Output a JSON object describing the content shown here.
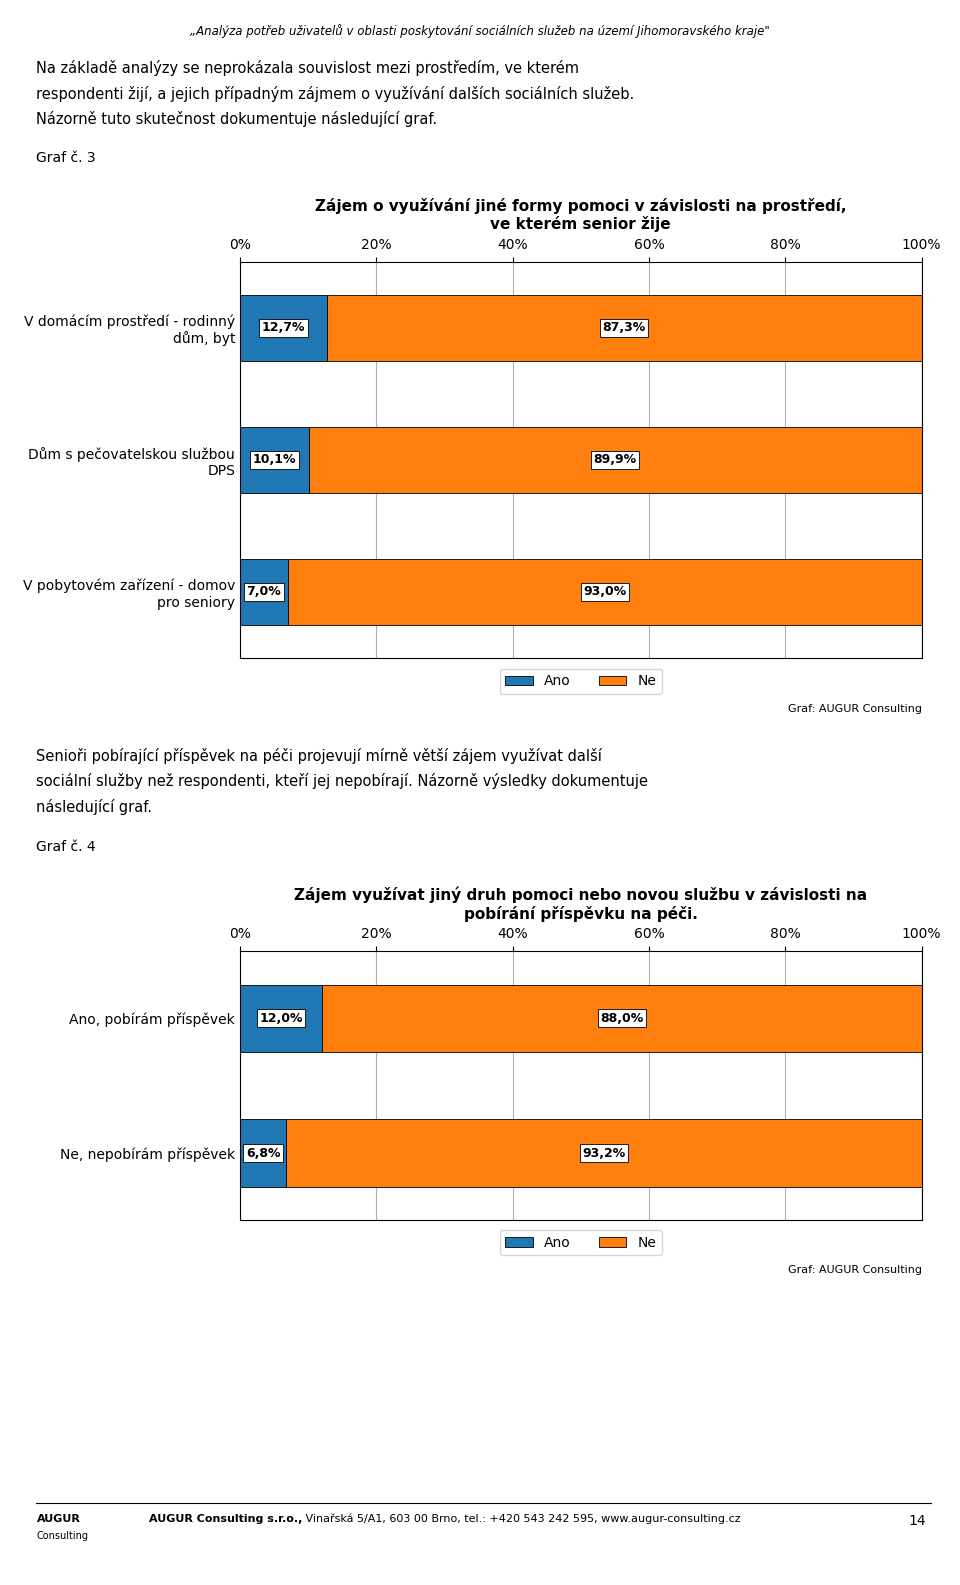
{
  "title": "„Analýza potřeb uživatelů v oblasti poskytování sociálních služeb na území Jihomoravského kraje\"",
  "annotations": [
    "AUGUR",
    "Consulting",
    "AUGUR Consulting s.r.o.,",
    " Vinařská 5/A1, 603 00 Brno, tel.: +420 543 242 595, www.augur-consulting.cz",
    "14"
  ],
  "chart_data": [
    {
      "type": "bar",
      "orientation": "horizontal",
      "stacked": true,
      "data_labels": true,
      "grid": true,
      "legend": "upper center",
      "subtitle": "Graf č. 3",
      "title": "Zájem o využívání jiné formy pomoci v závislosti na prostředí,\nve kterém senior žije",
      "annotations": [
        "Na základě analýzy se neprokázala souvislost mezi prostředím, ve kterém",
        "respondenti žijí, a jejich případným zájmem o využívání dalších sociálních služeb.",
        "Názorně tuto skutečnost dokumentuje následující graf.",
        "Graf: AUGUR Consulting"
      ],
      "categories": [
        "V domácím prostředí - rodinný\ndům, byt",
        "Dům s pečovatelskou službou\nDPS",
        "V pobytovém zařízení - domov\npro seniory"
      ],
      "series": [
        {
          "name": "Ano",
          "values": [
            12.7,
            10.1,
            7.0
          ],
          "value_labels": [
            "12,7%",
            "10,1%",
            "7,0%"
          ]
        },
        {
          "name": "Ne",
          "values": [
            87.3,
            89.9,
            93.0
          ],
          "value_labels": [
            "87,3%",
            "89,9%",
            "93,0%"
          ]
        }
      ],
      "xlim": [
        0,
        100
      ],
      "xticks": [
        {
          "value": 0,
          "label": "0%"
        },
        {
          "value": 20,
          "label": "20%"
        },
        {
          "value": 40,
          "label": "40%"
        },
        {
          "value": 60,
          "label": "60%"
        },
        {
          "value": 80,
          "label": "80%"
        },
        {
          "value": 100,
          "label": "100%"
        }
      ]
    },
    {
      "type": "bar",
      "orientation": "horizontal",
      "stacked": true,
      "data_labels": true,
      "grid": true,
      "legend": "upper center",
      "subtitle": "Graf č. 4",
      "title": "Zájem využívat jiný druh pomoci nebo novou službu v závislosti na\npobírání příspěvku na péči.",
      "annotations": [
        "Senioři pobírající příspěvek na péči projevují mírně větší zájem využívat další",
        "sociální služby než respondenti, kteří jej nepobírají. Názorně výsledky dokumentuje",
        "následující graf.",
        "Graf: AUGUR Consulting"
      ],
      "categories": [
        "Ano, pobírám příspěvek",
        "Ne, nepobírám příspěvek"
      ],
      "series": [
        {
          "name": "Ano",
          "values": [
            12.0,
            6.8
          ],
          "value_labels": [
            "12,0%",
            "6,8%"
          ]
        },
        {
          "name": "Ne",
          "values": [
            88.0,
            93.2
          ],
          "value_labels": [
            "88,0%",
            "93,2%"
          ]
        }
      ],
      "xlim": [
        0,
        100
      ],
      "xticks": [
        {
          "value": 0,
          "label": "0%"
        },
        {
          "value": 20,
          "label": "20%"
        },
        {
          "value": 40,
          "label": "40%"
        },
        {
          "value": 60,
          "label": "60%"
        },
        {
          "value": 80,
          "label": "80%"
        },
        {
          "value": 100,
          "label": "100%"
        }
      ]
    }
  ]
}
